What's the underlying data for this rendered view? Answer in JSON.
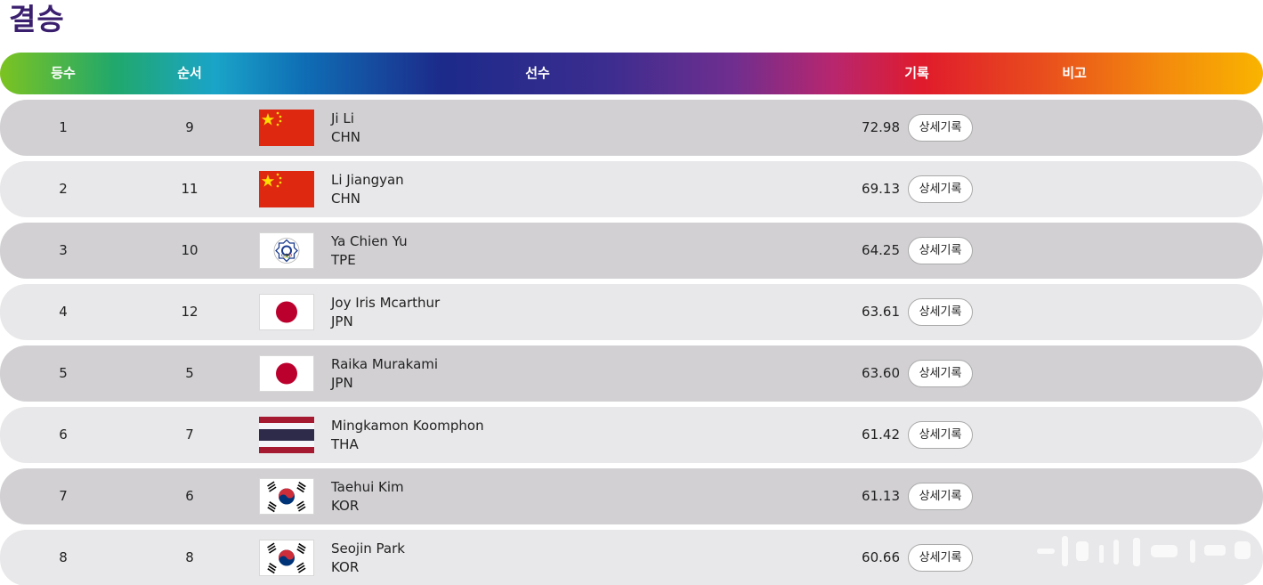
{
  "title": "결승",
  "header": {
    "rank": "등수",
    "order": "순서",
    "athlete": "선수",
    "record": "기록",
    "note": "비고"
  },
  "colors": {
    "title": "#3a1f6e",
    "row_dark": "#d2d0d3",
    "row_light": "#e8e7e9"
  },
  "detail_label": "상세기록",
  "rows": [
    {
      "rank": "1",
      "order": "9",
      "name": "Ji Li",
      "country": "CHN",
      "record": "72.98",
      "flag": "china-flag-icon"
    },
    {
      "rank": "2",
      "order": "11",
      "name": "Li Jiangyan",
      "country": "CHN",
      "record": "69.13",
      "flag": "china-flag-icon"
    },
    {
      "rank": "3",
      "order": "10",
      "name": "Ya Chien Yu",
      "country": "TPE",
      "record": "64.25",
      "flag": "chinese-taipei-flag-icon"
    },
    {
      "rank": "4",
      "order": "12",
      "name": "Joy Iris Mcarthur",
      "country": "JPN",
      "record": "63.61",
      "flag": "japan-flag-icon"
    },
    {
      "rank": "5",
      "order": "5",
      "name": "Raika Murakami",
      "country": "JPN",
      "record": "63.60",
      "flag": "japan-flag-icon"
    },
    {
      "rank": "6",
      "order": "7",
      "name": "Mingkamon Koomphon",
      "country": "THA",
      "record": "61.42",
      "flag": "thailand-flag-icon"
    },
    {
      "rank": "7",
      "order": "6",
      "name": "Taehui Kim",
      "country": "KOR",
      "record": "61.13",
      "flag": "korea-flag-icon"
    },
    {
      "rank": "8",
      "order": "8",
      "name": "Seojin Park",
      "country": "KOR",
      "record": "60.66",
      "flag": "korea-flag-icon"
    }
  ]
}
